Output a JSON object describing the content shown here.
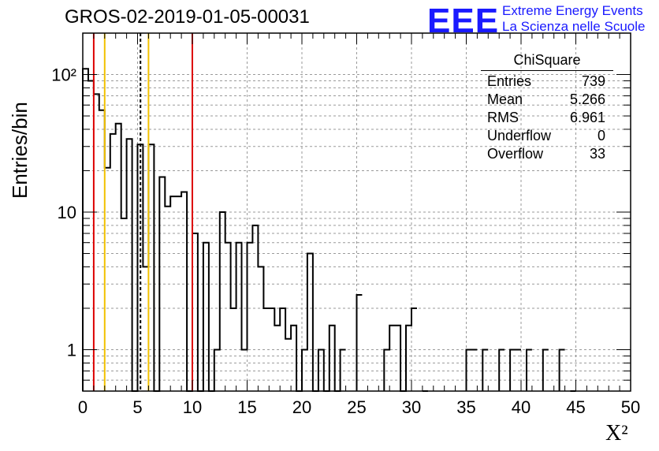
{
  "title": "GROS-02-2019-01-05-00031",
  "logo": {
    "mark": "EEE",
    "line1": "Extreme Energy Events",
    "line2": "La Scienza nelle Scuole",
    "color": "#1a1aff"
  },
  "stats": {
    "title": "ChiSquare",
    "rows": [
      {
        "label": "Entries",
        "value": "739"
      },
      {
        "label": "Mean",
        "value": "5.266"
      },
      {
        "label": "RMS",
        "value": "6.961"
      },
      {
        "label": "Underflow",
        "value": "0"
      },
      {
        "label": "Overflow",
        "value": "33"
      }
    ]
  },
  "chart_data": {
    "type": "bar",
    "histogram": true,
    "bin_width": 0.5,
    "xlabel": "X²",
    "ylabel": "Entries/bin",
    "xlim": [
      0,
      50
    ],
    "ylim": [
      0.5,
      200
    ],
    "yscale": "log",
    "grid": true,
    "x_ticks": [
      "0",
      "5",
      "10",
      "15",
      "20",
      "25",
      "30",
      "35",
      "40",
      "45",
      "50"
    ],
    "y_ticks": [
      "1",
      "10",
      "10²"
    ],
    "bins": [
      [
        0.0,
        110
      ],
      [
        0.5,
        90
      ],
      [
        1.0,
        72
      ],
      [
        1.5,
        55
      ],
      [
        2.0,
        21
      ],
      [
        2.5,
        37
      ],
      [
        3.0,
        44
      ],
      [
        3.5,
        9
      ],
      [
        4.0,
        34
      ],
      [
        4.5,
        0
      ],
      [
        5.0,
        31
      ],
      [
        5.5,
        4
      ],
      [
        6.0,
        31
      ],
      [
        6.5,
        0
      ],
      [
        7.0,
        18
      ],
      [
        7.5,
        11
      ],
      [
        8.0,
        13
      ],
      [
        8.5,
        13
      ],
      [
        9.0,
        14
      ],
      [
        9.5,
        0
      ],
      [
        10.0,
        7
      ],
      [
        10.5,
        0
      ],
      [
        11.0,
        6
      ],
      [
        11.5,
        0
      ],
      [
        12.0,
        1
      ],
      [
        12.5,
        10
      ],
      [
        13.0,
        6
      ],
      [
        13.5,
        2
      ],
      [
        14.0,
        6
      ],
      [
        14.5,
        1
      ],
      [
        15.0,
        6
      ],
      [
        15.5,
        8
      ],
      [
        16.0,
        4
      ],
      [
        16.5,
        2
      ],
      [
        17.0,
        2
      ],
      [
        17.5,
        1.5
      ],
      [
        18.0,
        2
      ],
      [
        18.5,
        1.2
      ],
      [
        19.0,
        1.5
      ],
      [
        19.5,
        0
      ],
      [
        20.0,
        1
      ],
      [
        20.5,
        5
      ],
      [
        21.0,
        0
      ],
      [
        21.5,
        1
      ],
      [
        22.0,
        0
      ],
      [
        22.5,
        1.5
      ],
      [
        23.0,
        0
      ],
      [
        23.5,
        1
      ],
      [
        25.0,
        2.5
      ],
      [
        27.5,
        1
      ],
      [
        28.0,
        1.5
      ],
      [
        28.5,
        1.5
      ],
      [
        29.0,
        0
      ],
      [
        29.5,
        1.5
      ],
      [
        30.0,
        2
      ],
      [
        31.0,
        0
      ],
      [
        35.0,
        1
      ],
      [
        35.5,
        1
      ],
      [
        36.5,
        1
      ],
      [
        38.0,
        1
      ],
      [
        39.0,
        1
      ],
      [
        39.5,
        1
      ],
      [
        40.5,
        1
      ],
      [
        42.0,
        1
      ],
      [
        43.5,
        1
      ],
      [
        44.5,
        0
      ]
    ],
    "vertical_lines": [
      {
        "x": 1.0,
        "color": "#dd0000",
        "style": "solid"
      },
      {
        "x": 2.0,
        "color": "#f2c200",
        "style": "solid"
      },
      {
        "x": 5.266,
        "color": "#000000",
        "style": "dashed"
      },
      {
        "x": 6.0,
        "color": "#f2c200",
        "style": "solid"
      },
      {
        "x": 10.0,
        "color": "#dd0000",
        "style": "solid"
      }
    ]
  }
}
